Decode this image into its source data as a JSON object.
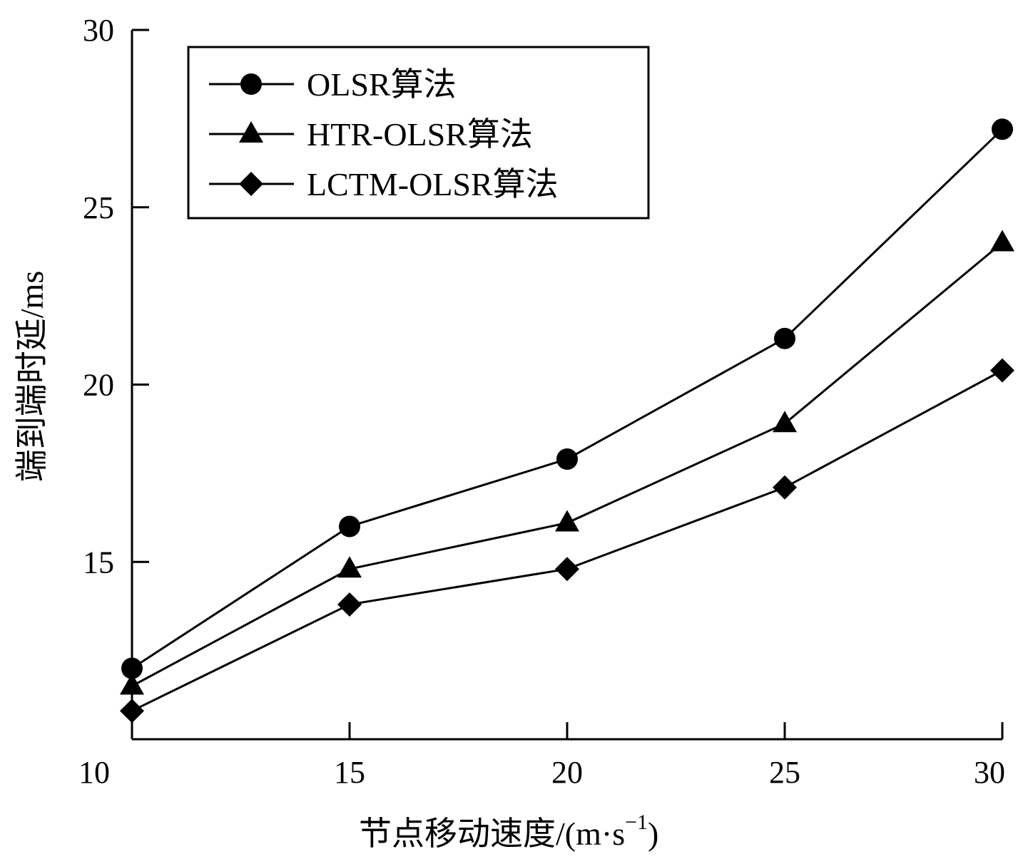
{
  "chart_data": {
    "type": "line",
    "title": "",
    "xlabel": "节点移动速度/(m·s",
    "xlabel_exponent": "−1",
    "xlabel_suffix": ")",
    "ylabel": "端到端时延/ms",
    "x": [
      10,
      15,
      20,
      25,
      30
    ],
    "x_ticks": [
      "10",
      "15",
      "20",
      "25",
      "30"
    ],
    "y_ticks": [
      "15",
      "20",
      "25",
      "30"
    ],
    "xlim": [
      10,
      30
    ],
    "ylim": [
      10,
      30
    ],
    "grid": false,
    "legend_position": "top-left",
    "series": [
      {
        "name": "OLSR算法",
        "marker": "circle",
        "values": [
          12.0,
          16.0,
          17.9,
          21.3,
          27.2
        ]
      },
      {
        "name": "HTR-OLSR算法",
        "marker": "triangle",
        "values": [
          11.5,
          14.8,
          16.1,
          18.9,
          24.0
        ]
      },
      {
        "name": "LCTM-OLSR算法",
        "marker": "diamond",
        "values": [
          10.8,
          13.8,
          14.8,
          17.1,
          20.4
        ]
      }
    ],
    "colors": {
      "line": "#000000",
      "background": "#ffffff"
    }
  }
}
